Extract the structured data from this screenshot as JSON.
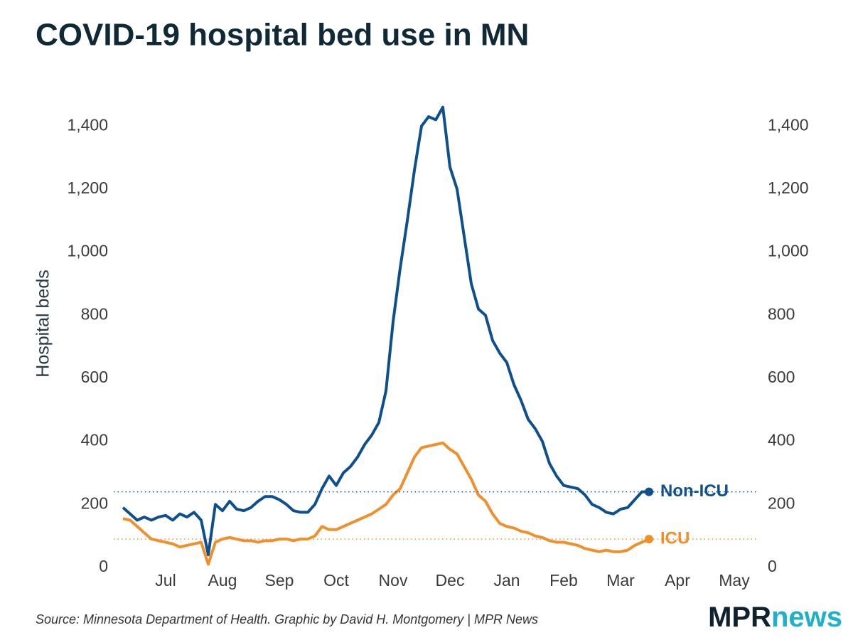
{
  "chart_data": {
    "type": "line",
    "title": "COVID-19 hospital bed use in MN",
    "ylabel": "Hospital beds",
    "categories": [
      null,
      null,
      null,
      null,
      null,
      null,
      "Jul",
      null,
      null,
      null,
      null,
      null,
      null,
      null,
      "Aug",
      null,
      null,
      null,
      null,
      null,
      null,
      null,
      "Sep",
      null,
      null,
      null,
      null,
      null,
      null,
      null,
      "Oct",
      null,
      null,
      null,
      null,
      null,
      null,
      null,
      "Nov",
      null,
      null,
      null,
      null,
      null,
      null,
      null,
      "Dec",
      null,
      null,
      null,
      null,
      null,
      null,
      null,
      "Jan",
      null,
      null,
      null,
      null,
      null,
      null,
      null,
      "Feb",
      null,
      null,
      null,
      null,
      null,
      null,
      null,
      "Mar",
      null,
      null,
      null,
      null,
      null,
      null,
      null,
      "Apr",
      null,
      null,
      null,
      null,
      null,
      null,
      null,
      "May",
      null
    ],
    "series": [
      {
        "name": "Non-ICU",
        "color": "#0e4f8e",
        "values": [
          190,
          170,
          150,
          160,
          150,
          160,
          165,
          150,
          170,
          160,
          175,
          150,
          40,
          200,
          180,
          210,
          185,
          180,
          190,
          210,
          225,
          225,
          215,
          200,
          180,
          175,
          175,
          200,
          250,
          290,
          260,
          300,
          320,
          350,
          390,
          420,
          460,
          560,
          780,
          950,
          1100,
          1260,
          1400,
          1430,
          1420,
          1460,
          1270,
          1200,
          1050,
          900,
          820,
          800,
          720,
          680,
          650,
          580,
          530,
          470,
          440,
          400,
          330,
          290,
          260,
          255,
          250,
          230,
          200,
          190,
          175,
          170,
          185,
          190,
          215,
          240,
          240,
          null,
          null,
          null,
          null,
          null,
          null,
          null,
          null,
          null,
          null,
          null,
          null,
          null
        ]
      },
      {
        "name": "ICU",
        "color": "#f0902c",
        "values": [
          155,
          150,
          130,
          110,
          90,
          85,
          80,
          75,
          65,
          70,
          75,
          80,
          10,
          80,
          90,
          95,
          90,
          85,
          85,
          80,
          85,
          85,
          90,
          90,
          85,
          90,
          90,
          100,
          130,
          120,
          120,
          130,
          140,
          150,
          160,
          170,
          185,
          200,
          230,
          250,
          300,
          350,
          380,
          385,
          390,
          395,
          375,
          360,
          320,
          280,
          230,
          210,
          170,
          140,
          130,
          125,
          115,
          110,
          100,
          95,
          85,
          80,
          80,
          75,
          70,
          60,
          55,
          50,
          55,
          50,
          50,
          55,
          70,
          80,
          90,
          null,
          null,
          null,
          null,
          null,
          null,
          null,
          null,
          null,
          null,
          null,
          null,
          null
        ]
      }
    ],
    "ylim": [
      0,
      1500
    ],
    "yticks": [
      0,
      200,
      400,
      600,
      800,
      {
        "value": 1000,
        "label": "1,000"
      },
      {
        "value": 1200,
        "label": "1,200"
      },
      {
        "value": 1400,
        "label": "1,400"
      }
    ],
    "y2lim": [
      0,
      1500
    ],
    "y2ticks": [
      0,
      200,
      400,
      600,
      800,
      {
        "value": 1000,
        "label": "1,000"
      },
      {
        "value": 1200,
        "label": "1,200"
      },
      {
        "value": 1400,
        "label": "1,400"
      }
    ],
    "grid": false
  },
  "footer": {
    "source": "Source: Minnesota Department of Health. Graphic by David H. Montgomery | MPR News",
    "logo": {
      "left": "MPR",
      "right": "news"
    }
  }
}
